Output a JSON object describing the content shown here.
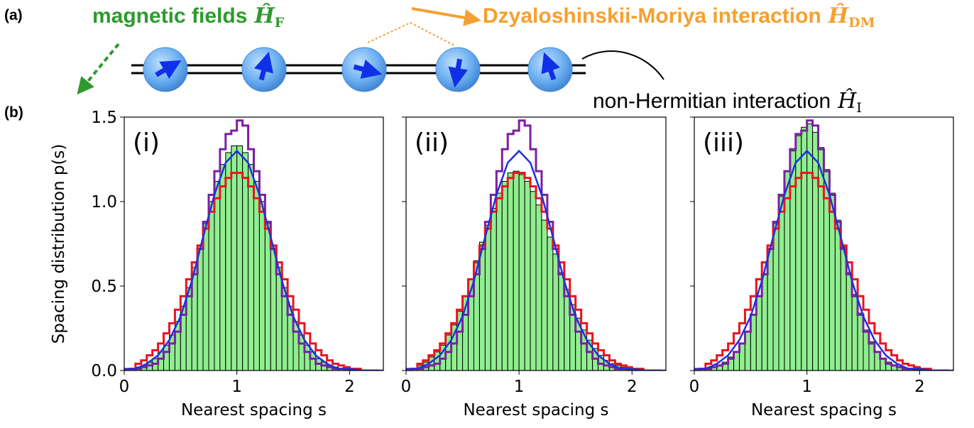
{
  "diagram": {
    "panel_label": "(a)",
    "field_label": {
      "text": "magnetic fields",
      "symbol": "Ĥ",
      "subscript": "F"
    },
    "dm_label": {
      "text": "Dzyaloshinskii-Moriya interaction",
      "symbol": "Ĥ",
      "subscript": "DM"
    },
    "nh_label": {
      "text": "non-Hermitian interaction",
      "symbol": "Ĥ",
      "subscript": "I"
    }
  },
  "panel_b_label": "(b)",
  "chart_data": [
    {
      "type": "histogram",
      "label": "(i)",
      "xlabel": "Nearest spacing s",
      "ylabel": "Spacing distribution p(s)",
      "xlim": [
        0,
        2.3
      ],
      "ylim": [
        0,
        1.5
      ],
      "xticks": [
        0,
        1,
        2
      ],
      "yticks": [
        {
          "value": 0,
          "label": "0.0"
        },
        {
          "value": 0.5,
          "label": "0.5"
        },
        {
          "value": 1,
          "label": "1.0"
        },
        {
          "value": 1.5,
          "label": "1.5"
        }
      ],
      "show_ytick_labels": true,
      "bins": [
        0,
        0.05,
        0.1,
        0.15,
        0.2,
        0.25,
        0.3,
        0.35,
        0.4,
        0.45,
        0.5,
        0.55,
        0.6,
        0.65,
        0.7,
        0.75,
        0.8,
        0.85,
        0.9,
        0.95,
        1,
        1.05,
        1.1,
        1.15,
        1.2,
        1.25,
        1.3,
        1.35,
        1.4,
        1.45,
        1.5,
        1.55,
        1.6,
        1.65,
        1.7,
        1.75,
        1.8,
        1.85,
        1.9,
        1.95,
        2,
        2.05,
        2.1,
        2.15,
        2.2,
        2.25
      ],
      "series": [
        {
          "style": "bars",
          "color": "#90ee90",
          "values": [
            0.01,
            0.01,
            0.02,
            0.03,
            0.05,
            0.07,
            0.11,
            0.15,
            0.21,
            0.29,
            0.38,
            0.49,
            0.61,
            0.74,
            0.87,
            1.0,
            1.12,
            1.22,
            1.29,
            1.33,
            1.33,
            1.29,
            1.22,
            1.12,
            1.0,
            0.87,
            0.74,
            0.61,
            0.49,
            0.38,
            0.29,
            0.21,
            0.15,
            0.11,
            0.07,
            0.05,
            0.03,
            0.02,
            0.01,
            0.01,
            0,
            0,
            0,
            0,
            0
          ]
        },
        {
          "style": "step",
          "color": "#7b1fa2",
          "values": [
            0,
            0.01,
            0.01,
            0.02,
            0.03,
            0.04,
            0.07,
            0.11,
            0.16,
            0.23,
            0.33,
            0.44,
            0.57,
            0.72,
            0.88,
            1.04,
            1.18,
            1.31,
            1.4,
            1.42,
            1.48,
            1.45,
            1.31,
            1.18,
            1.04,
            0.88,
            0.72,
            0.57,
            0.44,
            0.33,
            0.23,
            0.16,
            0.11,
            0.07,
            0.04,
            0.03,
            0.02,
            0.01,
            0.01,
            0,
            0,
            0,
            0,
            0,
            0
          ]
        },
        {
          "style": "step",
          "color": "#e8141e",
          "values": [
            0,
            0.01,
            0.04,
            0.06,
            0.09,
            0.12,
            0.16,
            0.22,
            0.28,
            0.36,
            0.44,
            0.54,
            0.64,
            0.74,
            0.84,
            0.94,
            1.02,
            1.09,
            1.14,
            1.17,
            1.17,
            1.14,
            1.09,
            1.02,
            0.94,
            0.84,
            0.74,
            0.64,
            0.54,
            0.44,
            0.36,
            0.28,
            0.22,
            0.16,
            0.12,
            0.09,
            0.06,
            0.04,
            0.03,
            0.02,
            0.01,
            0.01,
            0,
            0,
            0
          ]
        },
        {
          "style": "line",
          "color": "#1f2fe0",
          "x": [
            0,
            0.1,
            0.2,
            0.3,
            0.4,
            0.5,
            0.6,
            0.7,
            0.8,
            0.9,
            1,
            1.1,
            1.2,
            1.3,
            1.4,
            1.5,
            1.6,
            1.7,
            1.8,
            1.9,
            2,
            2.1,
            2.2,
            2.3
          ],
          "values": [
            0.01,
            0.01,
            0.04,
            0.09,
            0.18,
            0.32,
            0.53,
            0.79,
            1.04,
            1.23,
            1.3,
            1.23,
            1.04,
            0.79,
            0.53,
            0.32,
            0.18,
            0.09,
            0.04,
            0.01,
            0.01,
            0,
            0,
            0
          ]
        }
      ]
    },
    {
      "type": "histogram",
      "label": "(ii)",
      "xlabel": "Nearest spacing s",
      "xlim": [
        0,
        2.3
      ],
      "ylim": [
        0,
        1.5
      ],
      "xticks": [
        0,
        1,
        2
      ],
      "yticks": [
        0,
        0.5,
        1,
        1.5
      ],
      "show_ytick_labels": false,
      "bins": [
        0,
        0.05,
        0.1,
        0.15,
        0.2,
        0.25,
        0.3,
        0.35,
        0.4,
        0.45,
        0.5,
        0.55,
        0.6,
        0.65,
        0.7,
        0.75,
        0.8,
        0.85,
        0.9,
        0.95,
        1,
        1.05,
        1.1,
        1.15,
        1.2,
        1.25,
        1.3,
        1.35,
        1.4,
        1.45,
        1.5,
        1.55,
        1.6,
        1.65,
        1.7,
        1.75,
        1.8,
        1.85,
        1.9,
        1.95,
        2,
        2.05,
        2.1,
        2.15,
        2.2,
        2.25
      ],
      "series": [
        {
          "style": "bars",
          "color": "#90ee90",
          "values": [
            0,
            0.01,
            0.03,
            0.05,
            0.08,
            0.11,
            0.15,
            0.21,
            0.27,
            0.35,
            0.44,
            0.54,
            0.65,
            0.76,
            0.86,
            0.96,
            1.05,
            1.12,
            1.17,
            1.18,
            1.16,
            1.12,
            1.06,
            0.98,
            0.89,
            0.79,
            0.69,
            0.58,
            0.48,
            0.39,
            0.31,
            0.24,
            0.18,
            0.13,
            0.09,
            0.06,
            0.04,
            0.03,
            0.02,
            0.01,
            0.01,
            0,
            0,
            0,
            0
          ]
        },
        {
          "style": "step",
          "color": "#7b1fa2",
          "values": [
            0,
            0.01,
            0.01,
            0.02,
            0.03,
            0.04,
            0.07,
            0.11,
            0.16,
            0.23,
            0.33,
            0.44,
            0.57,
            0.72,
            0.88,
            1.04,
            1.18,
            1.31,
            1.4,
            1.42,
            1.48,
            1.45,
            1.31,
            1.18,
            1.04,
            0.88,
            0.72,
            0.57,
            0.44,
            0.33,
            0.23,
            0.16,
            0.11,
            0.07,
            0.04,
            0.03,
            0.02,
            0.01,
            0.01,
            0,
            0,
            0,
            0,
            0,
            0
          ]
        },
        {
          "style": "step",
          "color": "#e8141e",
          "values": [
            0,
            0.01,
            0.04,
            0.06,
            0.09,
            0.12,
            0.16,
            0.22,
            0.28,
            0.36,
            0.44,
            0.54,
            0.64,
            0.74,
            0.84,
            0.94,
            1.02,
            1.09,
            1.14,
            1.17,
            1.17,
            1.14,
            1.09,
            1.02,
            0.94,
            0.84,
            0.74,
            0.64,
            0.54,
            0.44,
            0.36,
            0.28,
            0.22,
            0.16,
            0.12,
            0.09,
            0.06,
            0.04,
            0.03,
            0.02,
            0.01,
            0.01,
            0,
            0,
            0
          ]
        },
        {
          "style": "line",
          "color": "#1f2fe0",
          "x": [
            0,
            0.1,
            0.2,
            0.3,
            0.4,
            0.5,
            0.6,
            0.7,
            0.8,
            0.9,
            1,
            1.1,
            1.2,
            1.3,
            1.4,
            1.5,
            1.6,
            1.7,
            1.8,
            1.9,
            2,
            2.1,
            2.2,
            2.3
          ],
          "values": [
            0.01,
            0.01,
            0.04,
            0.09,
            0.18,
            0.32,
            0.53,
            0.79,
            1.04,
            1.23,
            1.3,
            1.23,
            1.04,
            0.79,
            0.53,
            0.32,
            0.18,
            0.09,
            0.04,
            0.01,
            0.01,
            0,
            0,
            0
          ]
        }
      ]
    },
    {
      "type": "histogram",
      "label": "(iii)",
      "xlabel": "Nearest spacing s",
      "xlim": [
        0,
        2.3
      ],
      "ylim": [
        0,
        1.5
      ],
      "xticks": [
        0,
        1,
        2
      ],
      "yticks": [
        0,
        0.5,
        1,
        1.5
      ],
      "show_ytick_labels": false,
      "bins": [
        0,
        0.05,
        0.1,
        0.15,
        0.2,
        0.25,
        0.3,
        0.35,
        0.4,
        0.45,
        0.5,
        0.55,
        0.6,
        0.65,
        0.7,
        0.75,
        0.8,
        0.85,
        0.9,
        0.95,
        1,
        1.05,
        1.1,
        1.15,
        1.2,
        1.25,
        1.3,
        1.35,
        1.4,
        1.45,
        1.5,
        1.55,
        1.6,
        1.65,
        1.7,
        1.75,
        1.8,
        1.85,
        1.9,
        1.95,
        2,
        2.05,
        2.1,
        2.15,
        2.2,
        2.25
      ],
      "series": [
        {
          "style": "bars",
          "color": "#90ee90",
          "values": [
            0,
            0.01,
            0.01,
            0.02,
            0.03,
            0.05,
            0.08,
            0.11,
            0.16,
            0.23,
            0.33,
            0.44,
            0.57,
            0.72,
            0.87,
            1.03,
            1.18,
            1.3,
            1.39,
            1.44,
            1.46,
            1.41,
            1.32,
            1.19,
            1.05,
            0.89,
            0.73,
            0.58,
            0.45,
            0.34,
            0.24,
            0.17,
            0.11,
            0.07,
            0.05,
            0.03,
            0.02,
            0.01,
            0.01,
            0,
            0,
            0,
            0,
            0,
            0
          ]
        },
        {
          "style": "step",
          "color": "#7b1fa2",
          "values": [
            0,
            0.01,
            0.01,
            0.02,
            0.03,
            0.04,
            0.07,
            0.11,
            0.16,
            0.23,
            0.33,
            0.44,
            0.57,
            0.72,
            0.88,
            1.04,
            1.18,
            1.31,
            1.4,
            1.42,
            1.48,
            1.45,
            1.31,
            1.18,
            1.04,
            0.88,
            0.72,
            0.57,
            0.44,
            0.33,
            0.23,
            0.16,
            0.11,
            0.07,
            0.04,
            0.03,
            0.02,
            0.01,
            0.01,
            0,
            0,
            0,
            0,
            0,
            0
          ]
        },
        {
          "style": "step",
          "color": "#e8141e",
          "values": [
            0,
            0.01,
            0.04,
            0.06,
            0.09,
            0.12,
            0.16,
            0.22,
            0.28,
            0.36,
            0.44,
            0.54,
            0.64,
            0.74,
            0.84,
            0.94,
            1.02,
            1.09,
            1.14,
            1.17,
            1.17,
            1.14,
            1.09,
            1.02,
            0.94,
            0.84,
            0.74,
            0.64,
            0.54,
            0.44,
            0.36,
            0.28,
            0.22,
            0.16,
            0.12,
            0.09,
            0.06,
            0.04,
            0.03,
            0.02,
            0.01,
            0.01,
            0,
            0,
            0
          ]
        },
        {
          "style": "line",
          "color": "#1f2fe0",
          "x": [
            0,
            0.1,
            0.2,
            0.3,
            0.4,
            0.5,
            0.6,
            0.7,
            0.8,
            0.9,
            1,
            1.1,
            1.2,
            1.3,
            1.4,
            1.5,
            1.6,
            1.7,
            1.8,
            1.9,
            2,
            2.1,
            2.2,
            2.3
          ],
          "values": [
            0.01,
            0.01,
            0.04,
            0.09,
            0.18,
            0.32,
            0.53,
            0.79,
            1.04,
            1.23,
            1.3,
            1.23,
            1.04,
            0.79,
            0.53,
            0.32,
            0.18,
            0.09,
            0.04,
            0.01,
            0.01,
            0,
            0,
            0
          ]
        }
      ]
    }
  ]
}
